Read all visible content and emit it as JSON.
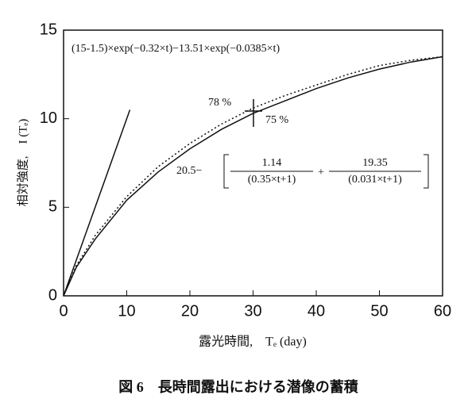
{
  "chart_data": {
    "type": "line",
    "caption": "図 6　長時間露出における潜像の蓄積",
    "xlabel": "露光時間,　Tₑ (day)",
    "ylabel": "相対強度,　I (Tₑ)",
    "xlim": [
      0,
      60
    ],
    "ylim": [
      0,
      15
    ],
    "xticks": [
      0,
      10,
      20,
      30,
      40,
      50,
      60
    ],
    "yticks": [
      0,
      5,
      10,
      15
    ],
    "series": [
      {
        "style": "solid",
        "color": "#111111",
        "x": [
          0,
          2,
          5,
          10,
          15,
          20,
          25,
          30,
          35,
          40,
          45,
          50,
          55,
          60
        ],
        "values": [
          0,
          1.6,
          3.2,
          5.4,
          7.0,
          8.3,
          9.4,
          10.3,
          11.0,
          11.7,
          12.3,
          12.8,
          13.2,
          13.5
        ]
      },
      {
        "style": "dotted",
        "color": "#111111",
        "x": [
          0,
          2,
          5,
          10,
          15,
          20,
          25,
          30,
          35,
          40,
          45,
          50,
          55,
          60
        ],
        "values": [
          0,
          1.7,
          3.4,
          5.6,
          7.3,
          8.6,
          9.7,
          10.6,
          11.3,
          11.9,
          12.5,
          13.0,
          13.3,
          13.5
        ]
      },
      {
        "style": "solid",
        "color": "#111111",
        "x": [
          0,
          10.5
        ],
        "values": [
          0,
          10.5
        ]
      }
    ],
    "annotations": {
      "formula1": "(15-1.5)×exp(−0.32×t)−13.51×exp(−0.0385×t)",
      "label78": "78 %",
      "label75": "75 %"
    },
    "formula2": {
      "prefix": "20.5−",
      "num1": "1.14",
      "den1": "(0.35×t+1)",
      "plus": "+",
      "num2": "19.35",
      "den2": "(0.031×t+1)"
    }
  }
}
